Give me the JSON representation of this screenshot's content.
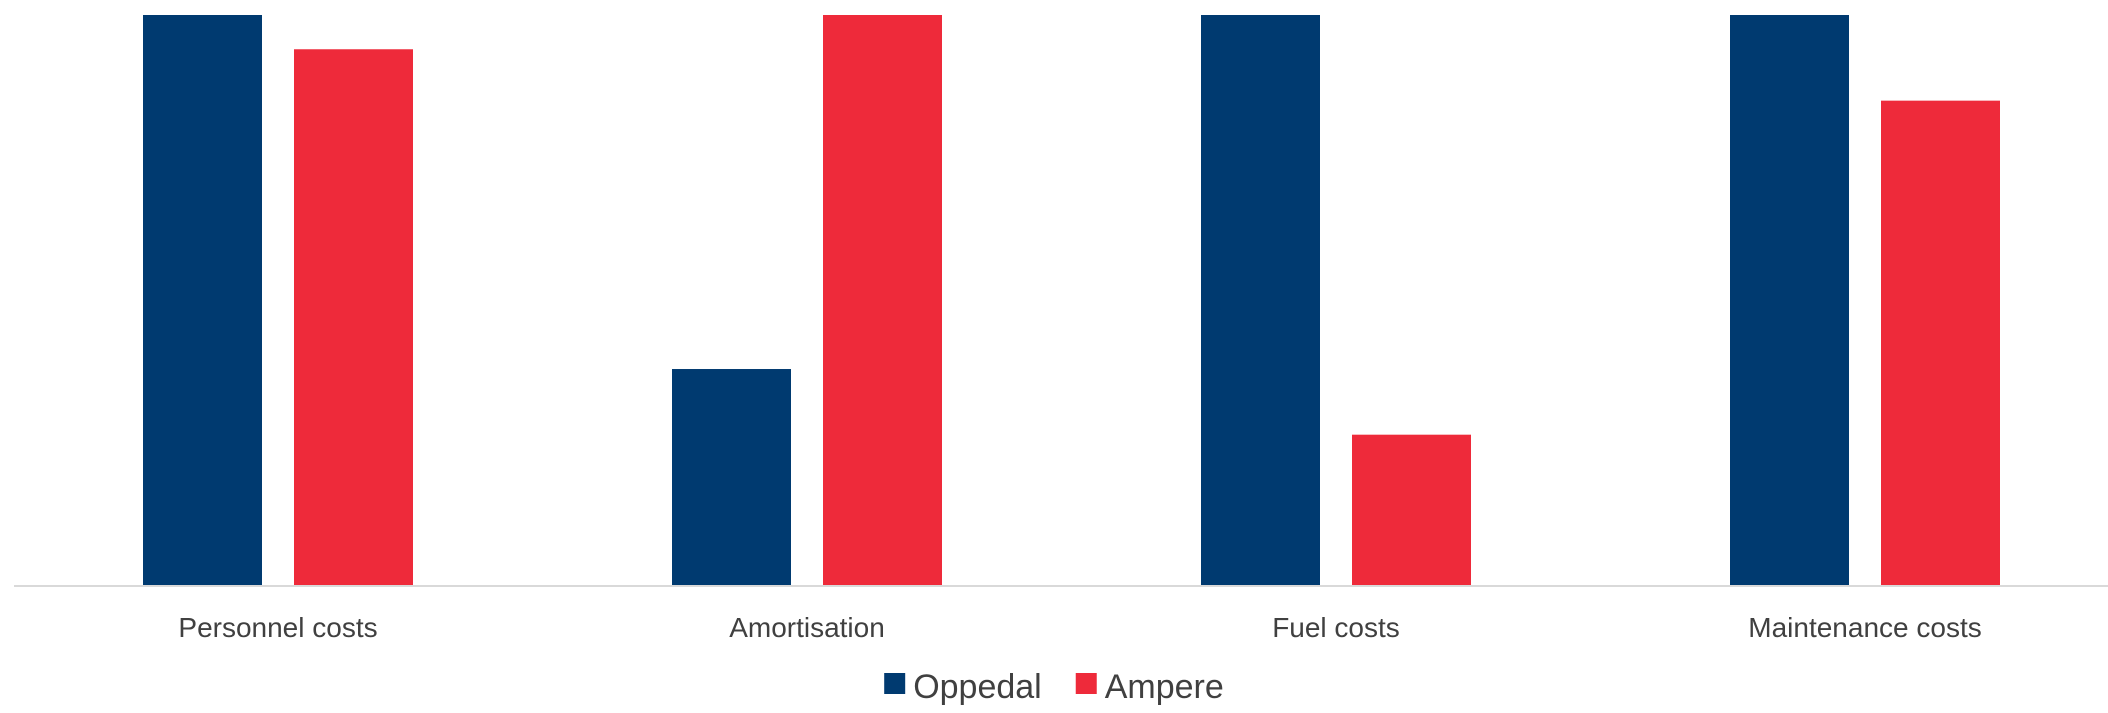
{
  "chart_data": {
    "type": "bar",
    "title": "",
    "xlabel": "",
    "ylabel": "",
    "categories": [
      "Personnel costs",
      "Amortisation",
      "Fuel costs",
      "Maintenance costs"
    ],
    "series": [
      {
        "name": "Oppedal",
        "color": "#003A70",
        "values": [
          100,
          38,
          100,
          100
        ]
      },
      {
        "name": "Ampere",
        "color": "#EE2A3A",
        "values": [
          94,
          100,
          26.5,
          85
        ]
      }
    ],
    "ylim": [
      0,
      100
    ],
    "grid": false,
    "legend_position": "bottom-center"
  }
}
